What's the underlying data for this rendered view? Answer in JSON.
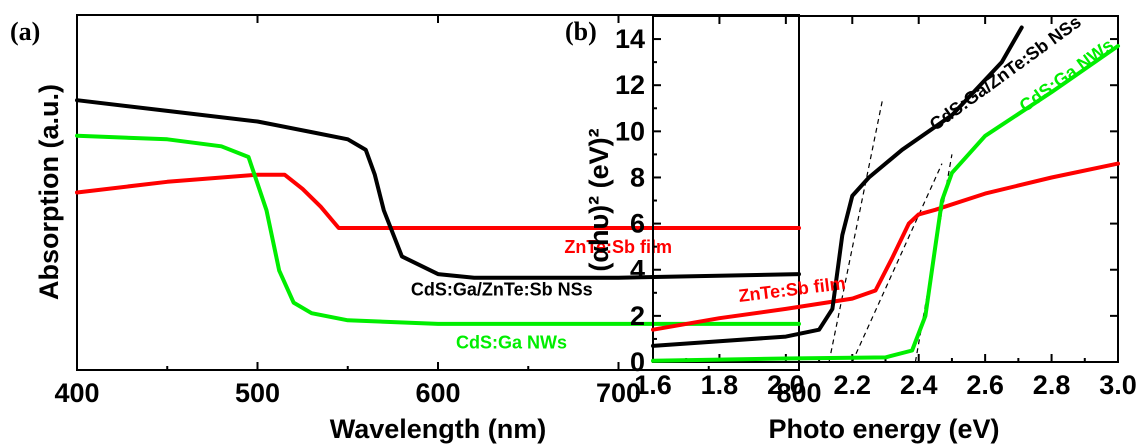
{
  "chart_data": [
    {
      "type": "line",
      "panel_label": "(a)",
      "xlabel": "Wavelength (nm)",
      "ylabel": "Absorption (a.u.)",
      "xlim": [
        400,
        800
      ],
      "ylim": [
        0,
        1
      ],
      "x_ticks": [
        "400",
        "500",
        "600",
        "700",
        "800"
      ],
      "y_ticks_labeled": false,
      "grid": false,
      "legend": "annotations",
      "series": [
        {
          "name": "ZnTe:Sb film",
          "color": "#ff0000",
          "x": [
            400,
            450,
            500,
            515,
            525,
            535,
            545,
            560,
            600,
            700,
            800
          ],
          "y": [
            0.5,
            0.53,
            0.55,
            0.55,
            0.51,
            0.46,
            0.4,
            0.4,
            0.4,
            0.4,
            0.4
          ]
        },
        {
          "name": "CdS:Ga/ZnTe:Sb NSs",
          "color": "#000000",
          "x": [
            400,
            450,
            500,
            530,
            550,
            560,
            565,
            570,
            580,
            600,
            620,
            650,
            700,
            800
          ],
          "y": [
            0.76,
            0.73,
            0.7,
            0.67,
            0.65,
            0.62,
            0.55,
            0.45,
            0.32,
            0.27,
            0.26,
            0.26,
            0.26,
            0.27
          ]
        },
        {
          "name": "CdS:Ga NWs",
          "color": "#00ee00",
          "x": [
            400,
            450,
            480,
            495,
            505,
            512,
            520,
            530,
            550,
            600,
            650,
            700,
            800
          ],
          "y": [
            0.66,
            0.65,
            0.63,
            0.6,
            0.45,
            0.28,
            0.19,
            0.16,
            0.14,
            0.13,
            0.13,
            0.13,
            0.13
          ]
        }
      ],
      "annotations": [
        {
          "text": "ZnTe:Sb film",
          "color": "#ff0000",
          "x": 670,
          "y": 0.33
        },
        {
          "text": "CdS:Ga/ZnTe:Sb NSs",
          "color": "#000000",
          "x": 585,
          "y": 0.21
        },
        {
          "text": "CdS:Ga NWs",
          "color": "#00ee00",
          "x": 610,
          "y": 0.06
        }
      ]
    },
    {
      "type": "line",
      "panel_label": "(b)",
      "xlabel": "Photo energy (eV)",
      "ylabel": "(αhυ)² (eV)²",
      "xlim": [
        1.6,
        3.0
      ],
      "ylim": [
        0,
        15
      ],
      "x_ticks": [
        "1.6",
        "1.8",
        "2.0",
        "2.2",
        "2.4",
        "2.6",
        "2.8",
        "3.0"
      ],
      "y_ticks": [
        "0",
        "2",
        "4",
        "6",
        "8",
        "10",
        "12",
        "14"
      ],
      "grid": false,
      "legend": "annotations",
      "series": [
        {
          "name": "ZnTe:Sb film",
          "color": "#ff0000",
          "x": [
            1.6,
            1.8,
            2.0,
            2.2,
            2.27,
            2.32,
            2.37,
            2.4,
            2.45,
            2.6,
            2.8,
            3.0
          ],
          "y": [
            1.4,
            1.9,
            2.3,
            2.75,
            3.1,
            4.5,
            6.0,
            6.4,
            6.6,
            7.3,
            8.0,
            8.6
          ]
        },
        {
          "name": "CdS:Ga/ZnTe:Sb NSs",
          "color": "#000000",
          "x": [
            1.6,
            1.8,
            2.0,
            2.1,
            2.14,
            2.17,
            2.2,
            2.25,
            2.35,
            2.5,
            2.65,
            2.71
          ],
          "y": [
            0.7,
            0.9,
            1.1,
            1.4,
            2.3,
            5.5,
            7.2,
            8.0,
            9.2,
            10.7,
            13.0,
            14.5
          ]
        },
        {
          "name": "CdS:Ga NWs",
          "color": "#00ee00",
          "x": [
            1.6,
            2.0,
            2.3,
            2.38,
            2.42,
            2.45,
            2.47,
            2.5,
            2.6,
            2.8,
            3.0
          ],
          "y": [
            0.05,
            0.15,
            0.2,
            0.5,
            2.0,
            5.0,
            7.0,
            8.2,
            9.8,
            11.7,
            13.7
          ]
        }
      ],
      "tangent_lines": [
        {
          "x": [
            2.13,
            2.29
          ],
          "y": [
            0,
            11.3
          ]
        },
        {
          "x": [
            2.2,
            2.47
          ],
          "y": [
            0,
            8.6
          ]
        },
        {
          "x": [
            2.39,
            2.5
          ],
          "y": [
            0,
            9.0
          ]
        }
      ],
      "annotations": [
        {
          "text": "ZnTe:Sb film",
          "color": "#ff0000",
          "x": 1.86,
          "y": 2.6,
          "rotate": -7
        },
        {
          "text": "CdS:Ga/ZnTe:Sb NSs",
          "color": "#000000",
          "x": 2.45,
          "y": 10.0,
          "rotate": -36
        },
        {
          "text": "CdS:Ga NWs",
          "color": "#00ee00",
          "x": 2.72,
          "y": 10.8,
          "rotate": -36
        }
      ]
    }
  ]
}
